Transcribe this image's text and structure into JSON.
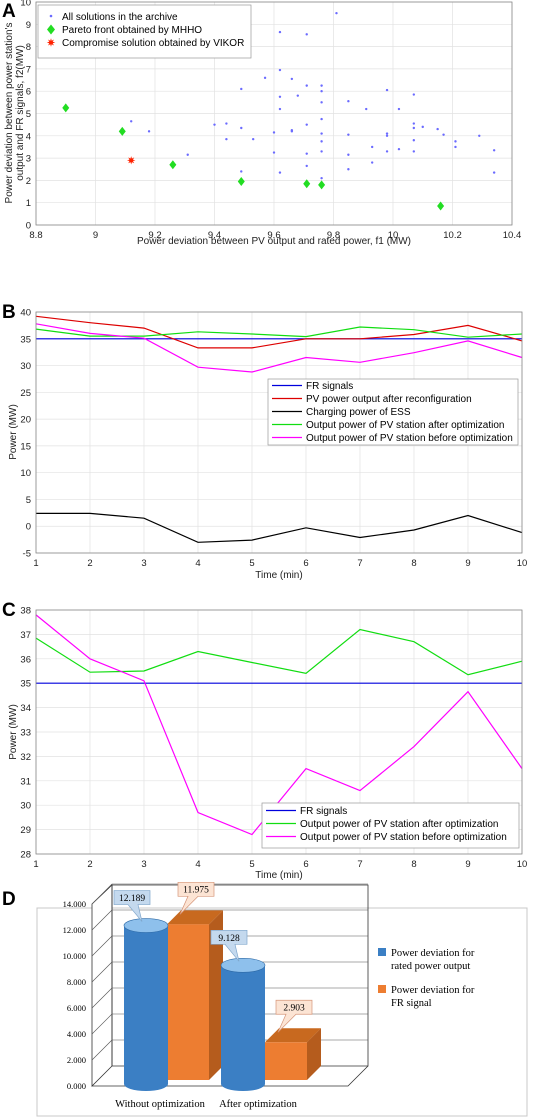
{
  "panel_labels": [
    "A",
    "B",
    "C",
    "D"
  ],
  "colors": {
    "archive": "#6b6bff",
    "pareto": "#22dd22",
    "vikor": "#ff2200",
    "fr": "#0000dd",
    "reconfig": "#dd0000",
    "ess": "#000000",
    "after": "#11dd11",
    "before": "#ff00ff",
    "bar_rated": "#3b7fc4",
    "bar_fr": "#ed7d31"
  },
  "chart_data": [
    {
      "type": "scatter",
      "xlabel": "Power deviation between PV output and rated power, f1 (MW)",
      "ylabel": [
        "Power deviation between power station's",
        "output and FR signals, f2(MW)"
      ],
      "xlim": [
        8.8,
        10.4
      ],
      "ylim": [
        0,
        10
      ],
      "xticks": [
        "8.8",
        "9",
        "9.2",
        "9.4",
        "9.6",
        "9.8",
        "10",
        "10.2",
        "10.4"
      ],
      "yticks": [
        "0",
        "1",
        "2",
        "3",
        "4",
        "5",
        "6",
        "7",
        "8",
        "9",
        "10"
      ],
      "grid": true,
      "legend_position": "top-left",
      "series": [
        {
          "name": "All solutions in the archive",
          "marker": "dot",
          "points": [
            [
              9.81,
              9.5
            ],
            [
              9.62,
              8.65
            ],
            [
              9.71,
              8.55
            ],
            [
              9.62,
              6.95
            ],
            [
              9.57,
              6.6
            ],
            [
              9.66,
              6.55
            ],
            [
              9.71,
              6.25
            ],
            [
              9.49,
              6.1
            ],
            [
              9.76,
              6.25
            ],
            [
              9.76,
              6.0
            ],
            [
              9.98,
              6.05
            ],
            [
              9.62,
              5.75
            ],
            [
              9.68,
              5.8
            ],
            [
              9.91,
              5.2
            ],
            [
              9.76,
              5.5
            ],
            [
              9.62,
              5.2
            ],
            [
              9.85,
              5.55
            ],
            [
              10.02,
              5.2
            ],
            [
              10.07,
              5.85
            ],
            [
              9.76,
              4.75
            ],
            [
              9.66,
              4.25
            ],
            [
              9.71,
              4.5
            ],
            [
              9.4,
              4.5
            ],
            [
              9.44,
              4.55
            ],
            [
              9.49,
              4.35
            ],
            [
              9.6,
              4.15
            ],
            [
              9.66,
              4.2
            ],
            [
              9.76,
              4.1
            ],
            [
              9.85,
              4.05
            ],
            [
              9.98,
              4.0
            ],
            [
              10.07,
              4.55
            ],
            [
              10.07,
              4.35
            ],
            [
              10.1,
              4.4
            ],
            [
              10.15,
              4.3
            ],
            [
              10.17,
              4.05
            ],
            [
              10.21,
              3.75
            ],
            [
              10.21,
              3.5
            ],
            [
              10.29,
              4.0
            ],
            [
              10.34,
              3.35
            ],
            [
              10.34,
              2.35
            ],
            [
              9.12,
              4.65
            ],
            [
              9.18,
              4.2
            ],
            [
              9.44,
              3.85
            ],
            [
              9.53,
              3.85
            ],
            [
              9.6,
              3.25
            ],
            [
              9.62,
              2.35
            ],
            [
              9.71,
              3.2
            ],
            [
              9.76,
              3.75
            ],
            [
              9.76,
              3.3
            ],
            [
              9.85,
              3.15
            ],
            [
              9.93,
              3.5
            ],
            [
              9.98,
              3.3
            ],
            [
              10.02,
              3.4
            ],
            [
              10.07,
              3.8
            ],
            [
              10.07,
              3.3
            ],
            [
              9.93,
              2.8
            ],
            [
              9.85,
              2.5
            ],
            [
              9.71,
              2.65
            ],
            [
              9.49,
              2.4
            ],
            [
              9.31,
              3.15
            ],
            [
              9.76,
              2.1
            ],
            [
              9.98,
              4.1
            ]
          ]
        },
        {
          "name": "Pareto front obtained by MHHO",
          "marker": "diamond",
          "points": [
            [
              8.9,
              5.25
            ],
            [
              9.09,
              4.2
            ],
            [
              9.26,
              2.7
            ],
            [
              9.49,
              1.95
            ],
            [
              9.71,
              1.85
            ],
            [
              9.76,
              1.8
            ],
            [
              10.16,
              0.85
            ]
          ]
        },
        {
          "name": "Compromise solution obtained by VIKOR",
          "marker": "star",
          "points": [
            [
              9.12,
              2.9
            ]
          ]
        }
      ]
    },
    {
      "type": "line",
      "xlabel": "Time (min)",
      "ylabel": "Power (MW)",
      "x": [
        1,
        2,
        3,
        4,
        5,
        6,
        7,
        8,
        9,
        10
      ],
      "xlim": [
        1,
        10
      ],
      "ylim": [
        -5,
        40
      ],
      "xticks": [
        "1",
        "2",
        "3",
        "4",
        "5",
        "6",
        "7",
        "8",
        "9",
        "10"
      ],
      "yticks": [
        "-5",
        "0",
        "5",
        "10",
        "15",
        "20",
        "25",
        "30",
        "35",
        "40"
      ],
      "grid": true,
      "legend_position": "center-right",
      "series": [
        {
          "name": "FR signals",
          "values": [
            35,
            35,
            35,
            35,
            35,
            35,
            35,
            35,
            35,
            35
          ]
        },
        {
          "name": "PV power output after reconfiguration",
          "values": [
            39.2,
            38.0,
            37.0,
            33.3,
            33.3,
            35.0,
            35.0,
            35.8,
            37.5,
            34.6
          ]
        },
        {
          "name": "Charging power of ESS",
          "values": [
            2.4,
            2.4,
            1.5,
            -3.0,
            -2.6,
            -0.3,
            -2.1,
            -0.7,
            2.0,
            -1.2
          ]
        },
        {
          "name": "Output power of PV station after optimization",
          "values": [
            36.8,
            35.5,
            35.5,
            36.3,
            35.9,
            35.4,
            37.2,
            36.7,
            35.3,
            35.9
          ]
        },
        {
          "name": "Output power of PV station before optimization",
          "values": [
            37.8,
            36.0,
            35.1,
            29.7,
            28.8,
            31.5,
            30.6,
            32.4,
            34.6,
            31.5
          ]
        }
      ]
    },
    {
      "type": "line",
      "xlabel": "Time (min)",
      "ylabel": "Power (MW)",
      "x": [
        1,
        2,
        3,
        4,
        5,
        6,
        7,
        8,
        9,
        10
      ],
      "xlim": [
        1,
        10
      ],
      "ylim": [
        28,
        38
      ],
      "xticks": [
        "1",
        "2",
        "3",
        "4",
        "5",
        "6",
        "7",
        "8",
        "9",
        "10"
      ],
      "yticks": [
        "28",
        "29",
        "30",
        "31",
        "32",
        "33",
        "34",
        "35",
        "36",
        "37",
        "38"
      ],
      "grid": true,
      "legend_position": "bottom-right",
      "series": [
        {
          "name": "FR signals",
          "values": [
            35,
            35,
            35,
            35,
            35,
            35,
            35,
            35,
            35,
            35
          ]
        },
        {
          "name": "Output power of PV station after optimization",
          "values": [
            36.85,
            35.45,
            35.5,
            36.3,
            35.85,
            35.4,
            37.2,
            36.7,
            35.35,
            35.9
          ]
        },
        {
          "name": "Output power of PV station before optimization",
          "values": [
            37.8,
            36.0,
            35.1,
            29.7,
            28.8,
            31.5,
            30.6,
            32.4,
            34.65,
            31.5
          ]
        }
      ]
    },
    {
      "type": "bar",
      "style": "3d-cylinder",
      "categories": [
        "Without optimization",
        "After optimization"
      ],
      "ylim": [
        0,
        14
      ],
      "yticks": [
        "0.000",
        "2.000",
        "4.000",
        "6.000",
        "8.000",
        "10.000",
        "12.000",
        "14.000"
      ],
      "legend_position": "right",
      "series": [
        {
          "name": "Power deviation for rated power output",
          "values": [
            12.189,
            9.128
          ],
          "labels": [
            "12.189",
            "9.128"
          ]
        },
        {
          "name": "Power deviation for FR signal",
          "values": [
            11.975,
            2.903
          ],
          "labels": [
            "11.975",
            "2.903"
          ]
        }
      ]
    }
  ]
}
